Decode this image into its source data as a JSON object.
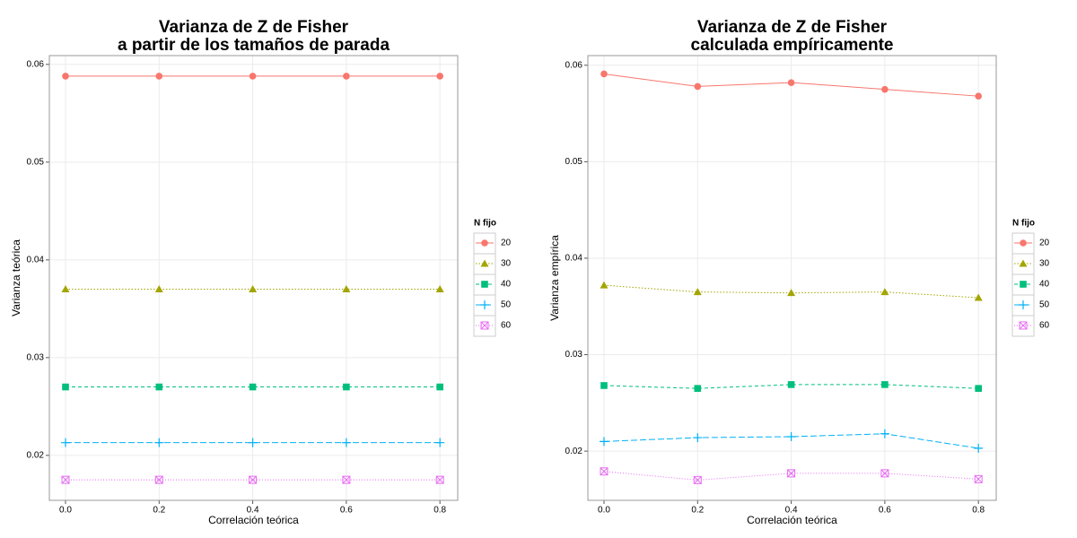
{
  "chart_data": [
    {
      "type": "line",
      "title": [
        "Varianza de Z de Fisher",
        "a partir de los tamaños de parada"
      ],
      "x_label": "Correlación teórica",
      "y_label": "Varianza teórica",
      "legend_title": "N fijo",
      "legend": "right",
      "grid": true,
      "x": [
        0,
        0.2,
        0.4,
        0.6,
        0.8
      ],
      "xlim": [
        -0.0345,
        0.838
      ],
      "xticks": [
        {
          "value": 0,
          "label": "0.0"
        },
        0.2,
        0.4,
        0.6,
        0.8
      ],
      "ylim": [
        0.0154,
        0.0609
      ],
      "yticks": [
        0.02,
        0.03,
        0.04,
        0.05,
        0.06
      ],
      "series": [
        {
          "name": "20",
          "color": "#F8766D",
          "marker": "circle",
          "dash": "none",
          "values": [
            0.0588,
            0.0588,
            0.0588,
            0.0588,
            0.0588
          ]
        },
        {
          "name": "30",
          "color": "#A3A500",
          "marker": "triangle",
          "dash": "1.5 2",
          "values": [
            0.037,
            0.037,
            0.037,
            0.037,
            0.037
          ]
        },
        {
          "name": "40",
          "color": "#00BF7D",
          "marker": "square",
          "dash": "4 3",
          "values": [
            0.027,
            0.027,
            0.027,
            0.027,
            0.027
          ]
        },
        {
          "name": "50",
          "color": "#00B0F6",
          "marker": "plus",
          "dash": "7 3",
          "values": [
            0.0213,
            0.0213,
            0.0213,
            0.0213,
            0.0213
          ]
        },
        {
          "name": "60",
          "color": "#E76BF3",
          "marker": "boxx",
          "dash": "1 2",
          "values": [
            0.0175,
            0.0175,
            0.0175,
            0.0175,
            0.0175
          ]
        }
      ]
    },
    {
      "type": "line",
      "title": [
        "Varianza de Z de Fisher",
        "calculada empíricamente"
      ],
      "x_label": "Correlación teórica",
      "y_label": "Varianza empírica",
      "legend_title": "N fijo",
      "legend": "right",
      "grid": true,
      "x": [
        0,
        0.2,
        0.4,
        0.6,
        0.8
      ],
      "xlim": [
        -0.0345,
        0.838
      ],
      "xticks": [
        {
          "value": 0,
          "label": "0.0"
        },
        0.2,
        0.4,
        0.6,
        0.8
      ],
      "ylim": [
        0.0149,
        0.061
      ],
      "yticks": [
        0.02,
        0.03,
        0.04,
        0.05,
        0.06
      ],
      "series": [
        {
          "name": "20",
          "color": "#F8766D",
          "marker": "circle",
          "dash": "none",
          "values": [
            0.0591,
            0.0578,
            0.0582,
            0.0575,
            0.0568
          ]
        },
        {
          "name": "30",
          "color": "#A3A500",
          "marker": "triangle",
          "dash": "1.5 2",
          "values": [
            0.0372,
            0.0365,
            0.0364,
            0.0365,
            0.0359
          ]
        },
        {
          "name": "40",
          "color": "#00BF7D",
          "marker": "square",
          "dash": "4 3",
          "values": [
            0.0268,
            0.0265,
            0.0269,
            0.0269,
            0.0265
          ]
        },
        {
          "name": "50",
          "color": "#00B0F6",
          "marker": "plus",
          "dash": "7 3",
          "values": [
            0.021,
            0.0214,
            0.0215,
            0.0218,
            0.0203
          ]
        },
        {
          "name": "60",
          "color": "#E76BF3",
          "marker": "boxx",
          "dash": "1 2",
          "values": [
            0.0179,
            0.017,
            0.0177,
            0.0177,
            0.0171
          ]
        }
      ]
    }
  ]
}
